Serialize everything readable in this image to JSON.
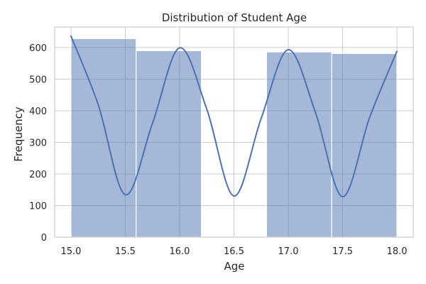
{
  "chart_data": {
    "type": "bar",
    "title": "Distribution of Student Age",
    "xlabel": "Age",
    "ylabel": "Frequency",
    "xlim": [
      14.85,
      18.15
    ],
    "ylim": [
      0,
      665
    ],
    "x_ticks": [
      15.0,
      15.5,
      16.0,
      16.5,
      17.0,
      17.5,
      18.0
    ],
    "y_ticks": [
      0,
      100,
      200,
      300,
      400,
      500,
      600
    ],
    "grid": true,
    "bars": [
      {
        "x0": 15.0,
        "x1": 15.6,
        "value": 628
      },
      {
        "x0": 15.6,
        "x1": 16.2,
        "value": 590
      },
      {
        "x0": 16.2,
        "x1": 16.8,
        "value": 0
      },
      {
        "x0": 16.8,
        "x1": 17.4,
        "value": 586
      },
      {
        "x0": 17.4,
        "x1": 18.0,
        "value": 581
      }
    ],
    "kde": {
      "x": [
        15.0,
        15.25,
        15.5,
        15.75,
        16.0,
        16.25,
        16.5,
        16.75,
        17.0,
        17.25,
        17.5,
        17.75,
        18.0
      ],
      "y": [
        636,
        420,
        134,
        360,
        599,
        405,
        130,
        375,
        593,
        395,
        128,
        380,
        588
      ]
    },
    "colors": {
      "bar_fill": "#4c72b0",
      "bar_opacity": 0.5,
      "kde_line": "#4c72b0",
      "grid": "#cccccc",
      "spine": "#cccccc"
    }
  }
}
